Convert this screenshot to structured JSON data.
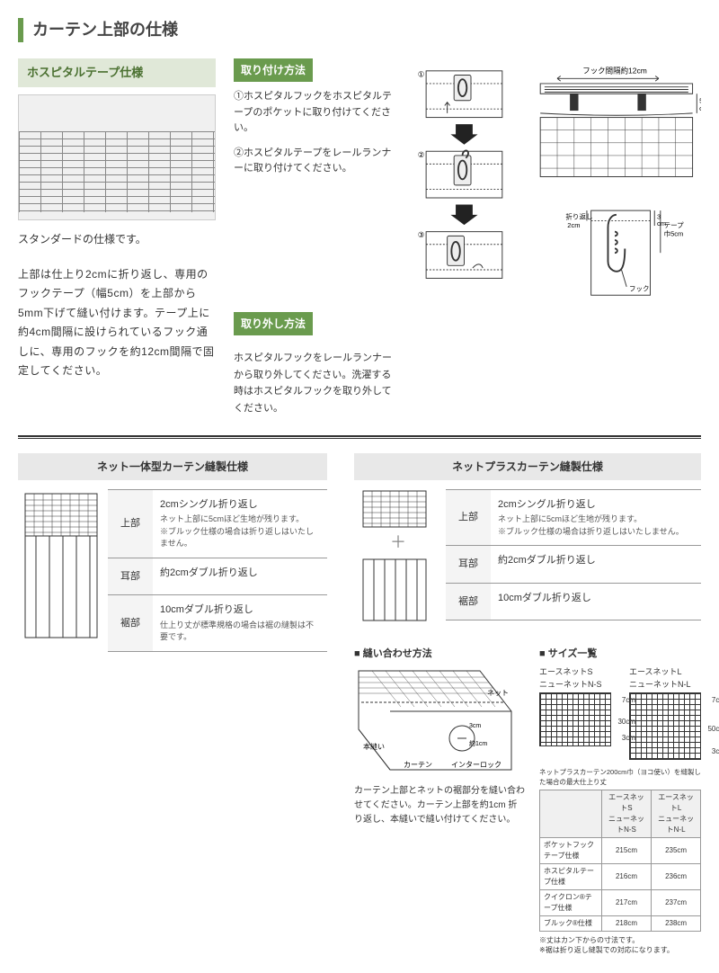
{
  "colors": {
    "accent_green": "#6a9b4e",
    "light_green": "#e0e8d8",
    "text_green": "#4a7030",
    "divider": "#333333",
    "bg_gray": "#e8e8e8",
    "border_gray": "#999999"
  },
  "title": "カーテン上部の仕様",
  "hospital_tape": {
    "label": "ホスピタルテープ仕様",
    "caption": "スタンダードの仕様です。",
    "description": "上部は仕上り2cmに折り返し、専用のフックテープ（幅5cm）を上部から5mm下げて縫い付けます。テープ上に約4cm間隔に設けられているフック通しに、専用のフックを約12cm間隔で固定してください。"
  },
  "install": {
    "heading": "取り付け方法",
    "step1": "①ホスピタルフックをホスピタルテープのポケットに取り付けてください。",
    "step2": "②ホスピタルテープをレールランナーに取り付けてください。"
  },
  "remove": {
    "heading": "取り外し方法",
    "text": "ホスピタルフックをレールランナーから取り外してください。洗濯する時はホスピタルフックを取り外してください。"
  },
  "diagram_labels": {
    "hook_spacing": "フック間隔約12cm",
    "height_5cm": "5cm",
    "fold_2cm": "折り返し2cm",
    "tape_3cm": "3cm",
    "tape_width": "テープ巾5cm",
    "hook": "フック",
    "step1_num": "①",
    "step2_num": "②",
    "step3_num": "③"
  },
  "net_integrated": {
    "heading": "ネット一体型カーテン縫製仕様",
    "rows": [
      {
        "label": "上部",
        "main": "2cmシングル折り返し",
        "note": "ネット上部に5cmほど生地が残ります。\n※ブルック仕様の場合は折り返しはいたしません。"
      },
      {
        "label": "耳部",
        "main": "約2cmダブル折り返し",
        "note": ""
      },
      {
        "label": "裾部",
        "main": "10cmダブル折り返し",
        "note": "仕上り丈が標準規格の場合は裾の縫製は不要です。"
      }
    ]
  },
  "net_plus": {
    "heading": "ネットプラスカーテン縫製仕様",
    "rows": [
      {
        "label": "上部",
        "main": "2cmシングル折り返し",
        "note": "ネット上部に5cmほど生地が残ります。\n※ブルック仕様の場合は折り返しはいたしません。"
      },
      {
        "label": "耳部",
        "main": "約2cmダブル折り返し",
        "note": ""
      },
      {
        "label": "裾部",
        "main": "10cmダブル折り返し",
        "note": ""
      }
    ]
  },
  "stitch": {
    "heading": "■ 縫い合わせ方法",
    "labels": {
      "net": "ネット",
      "curtain": "カーテン",
      "honnui": "本縫い",
      "interlock": "インターロック",
      "dim3cm": "3cm",
      "dim1cm": "約1cm"
    },
    "text": "カーテン上部とネットの裾部分を縫い合わせてください。カーテン上部を約1cm 折り返し、本縫いで縫い付けてください。"
  },
  "size_list": {
    "heading": "■ サイズ一覧",
    "box_s": {
      "title": "エースネットS\nニューネットN-S",
      "dims": [
        "7cm",
        "30cm",
        "3cm"
      ]
    },
    "box_l": {
      "title": "エースネットL\nニューネットN-L",
      "dims": [
        "7cm",
        "50cm",
        "3cm"
      ]
    },
    "table_caption": "ネットプラスカーテン200cm巾（ヨコ使い）を縫製した場合の最大仕上り丈",
    "table": {
      "headers": [
        "",
        "エースネットS\nニューネットN-S",
        "エースネットL\nニューネットN-L"
      ],
      "rows": [
        [
          "ポケットフックテープ仕様",
          "215cm",
          "235cm"
        ],
        [
          "ホスピタルテープ仕様",
          "216cm",
          "236cm"
        ],
        [
          "クイクロン®テープ仕様",
          "217cm",
          "237cm"
        ],
        [
          "ブルック®仕様",
          "218cm",
          "238cm"
        ]
      ]
    },
    "notes": "※丈はカン下からの寸法です。\n※裾は折り返し縫製での対応になります。"
  }
}
